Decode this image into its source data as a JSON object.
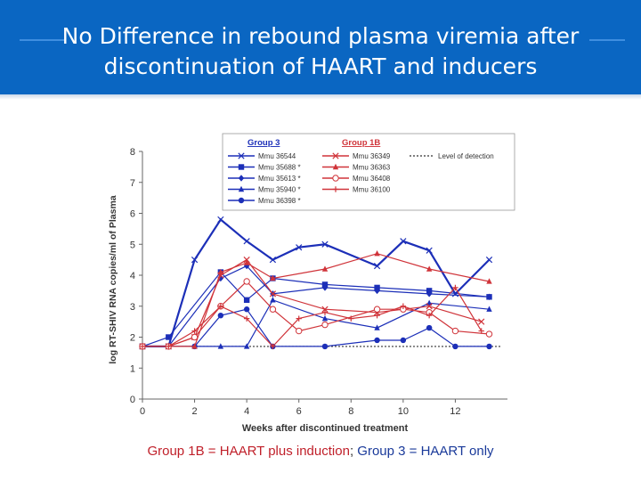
{
  "title": {
    "line1": "No Difference in rebound plasma viremia after",
    "line2": "discontinuation of HAART and inducers"
  },
  "caption": {
    "part1": "Group 1B = HAART plus induction",
    "sep": "; ",
    "part2": "Group 3 = HAART only"
  },
  "colors": {
    "header": "#0a66c2",
    "group3": "#1c2fb8",
    "group1b": "#d0343a",
    "caption_red": "#c0202a",
    "caption_blue": "#1a3a9a"
  },
  "chart_data": {
    "type": "line",
    "xlabel": "Weeks after discontinued treatment",
    "ylabel": "log RT-SHIV RNA copies/ml of Plasma",
    "xlim": [
      0,
      14
    ],
    "ylim": [
      0,
      8
    ],
    "x_ticks": [
      0,
      2,
      4,
      6,
      8,
      10,
      12
    ],
    "y_ticks": [
      0,
      1,
      2,
      3,
      4,
      5,
      6,
      7,
      8
    ],
    "legend_position": "top",
    "legend_groups": [
      "Group 3",
      "Group 1B"
    ],
    "detection_line": {
      "label": "Level of detection",
      "value": 1.7
    },
    "series": [
      {
        "name": "Mmu 36544",
        "group": "Group 3",
        "marker": "x",
        "color": "#1c2fb8",
        "x": [
          0,
          1,
          2,
          3,
          4,
          5,
          6,
          7,
          9,
          10,
          11,
          12,
          13.3
        ],
        "y": [
          1.7,
          1.7,
          4.5,
          5.8,
          5.1,
          4.5,
          4.9,
          5.0,
          4.3,
          5.1,
          4.8,
          3.4,
          4.5
        ]
      },
      {
        "name": "Mmu 35688 *",
        "group": "Group 3",
        "marker": "square",
        "color": "#1c2fb8",
        "x": [
          0,
          1,
          3,
          4,
          5,
          7,
          9,
          11,
          13.3
        ],
        "y": [
          1.7,
          2.0,
          4.1,
          3.2,
          3.9,
          3.7,
          3.6,
          3.5,
          3.3
        ]
      },
      {
        "name": "Mmu 35613 *",
        "group": "Group 3",
        "marker": "diamond",
        "color": "#1c2fb8",
        "x": [
          0,
          1,
          3,
          4,
          5,
          7,
          9,
          11,
          13.3
        ],
        "y": [
          1.7,
          1.7,
          3.9,
          4.3,
          3.4,
          3.6,
          3.5,
          3.4,
          3.3
        ]
      },
      {
        "name": "Mmu 35940 *",
        "group": "Group 3",
        "marker": "triangle",
        "color": "#1c2fb8",
        "x": [
          0,
          1,
          2,
          3,
          4,
          5,
          7,
          9,
          11,
          13.3
        ],
        "y": [
          1.7,
          1.7,
          1.7,
          1.7,
          1.7,
          3.2,
          2.6,
          2.3,
          3.1,
          2.9
        ]
      },
      {
        "name": "Mmu 36398 *",
        "group": "Group 3",
        "marker": "circle",
        "color": "#1c2fb8",
        "x": [
          0,
          1,
          2,
          3,
          4,
          5,
          7,
          9,
          10,
          11,
          12,
          13.3
        ],
        "y": [
          1.7,
          1.7,
          1.7,
          2.7,
          2.9,
          1.7,
          1.7,
          1.9,
          1.9,
          2.3,
          1.7,
          1.7
        ]
      },
      {
        "name": "Mmu 36349",
        "group": "Group 1B",
        "marker": "x",
        "color": "#d0343a",
        "x": [
          0,
          1,
          2,
          3,
          4,
          5,
          7,
          9,
          11,
          13
        ],
        "y": [
          1.7,
          1.7,
          2.0,
          4.0,
          4.5,
          3.4,
          2.9,
          2.8,
          3.0,
          2.5
        ]
      },
      {
        "name": "Mmu 36363",
        "group": "Group 1B",
        "marker": "triangle",
        "color": "#d0343a",
        "x": [
          0,
          1,
          2,
          3,
          4,
          5,
          7,
          9,
          11,
          13.3
        ],
        "y": [
          1.7,
          1.7,
          1.7,
          4.1,
          4.4,
          3.9,
          4.2,
          4.7,
          4.2,
          3.8
        ]
      },
      {
        "name": "Mmu 36408",
        "group": "Group 1B",
        "marker": "circle-open",
        "color": "#d0343a",
        "x": [
          0,
          1,
          2,
          3,
          4,
          5,
          6,
          7,
          9,
          10,
          11,
          12,
          13.3
        ],
        "y": [
          1.7,
          1.7,
          2.0,
          3.0,
          3.8,
          2.9,
          2.2,
          2.4,
          2.9,
          2.9,
          2.8,
          2.2,
          2.1
        ]
      },
      {
        "name": "Mmu 36100",
        "group": "Group 1B",
        "marker": "plus",
        "color": "#d0343a",
        "x": [
          0,
          1,
          2,
          3,
          4,
          5,
          6,
          7,
          8,
          9,
          10,
          11,
          12,
          13
        ],
        "y": [
          1.7,
          1.7,
          2.2,
          3.0,
          2.6,
          1.7,
          2.6,
          2.8,
          2.6,
          2.7,
          3.0,
          2.7,
          3.6,
          2.2
        ]
      }
    ]
  }
}
